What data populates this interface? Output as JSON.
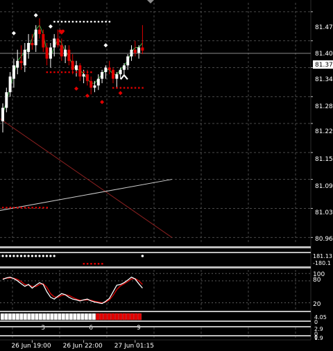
{
  "chart_data": {
    "type": "candlestick",
    "symbol_overlay": "trading-terminal",
    "colors": {
      "background": "#000000",
      "bull": "#ffffff",
      "bear": "#e00000",
      "grid": "#4a4a4a",
      "ma": "#3cb043",
      "stoch_main": "#ffffff",
      "stoch_signal": "#e00000",
      "trend_red": "#8b2020",
      "trend_white": "#cfcfcf",
      "price_line": "#8c8c8c",
      "separator": "#bfbfbf"
    },
    "main": {
      "ylim": [
        80.95,
        81.49
      ],
      "y_ticks": [
        "81.470",
        "81.405",
        "81.345",
        "81.280",
        "81.220",
        "81.155",
        "81.095",
        "81.030",
        "80.965"
      ],
      "y_tick_values": [
        81.47,
        81.405,
        81.345,
        81.28,
        81.22,
        81.155,
        81.095,
        81.03,
        80.965
      ],
      "current_price_label": "81.377",
      "current_price": 81.377,
      "candles": [
        [
          81.225,
          81.265,
          81.2,
          81.255
        ],
        [
          81.255,
          81.3,
          81.245,
          81.29
        ],
        [
          81.29,
          81.335,
          81.28,
          81.325
        ],
        [
          81.32,
          81.365,
          81.3,
          81.35
        ],
        [
          81.345,
          81.385,
          81.33,
          81.36
        ],
        [
          81.36,
          81.395,
          81.34,
          81.355
        ],
        [
          81.35,
          81.4,
          81.335,
          81.385
        ],
        [
          81.38,
          81.42,
          81.365,
          81.4
        ],
        [
          81.4,
          81.42,
          81.385,
          81.395
        ],
        [
          81.395,
          81.44,
          81.38,
          81.43
        ],
        [
          81.43,
          81.455,
          81.41,
          81.42
        ],
        [
          81.42,
          81.43,
          81.38,
          81.39
        ],
        [
          81.39,
          81.4,
          81.35,
          81.365
        ],
        [
          81.365,
          81.4,
          81.345,
          81.39
        ],
        [
          81.39,
          81.42,
          81.37,
          81.41
        ],
        [
          81.41,
          81.43,
          81.39,
          81.395
        ],
        [
          81.395,
          81.41,
          81.36,
          81.37
        ],
        [
          81.37,
          81.395,
          81.355,
          81.385
        ],
        [
          81.385,
          81.395,
          81.35,
          81.36
        ],
        [
          81.36,
          81.375,
          81.33,
          81.34
        ],
        [
          81.34,
          81.36,
          81.325,
          81.35
        ],
        [
          81.35,
          81.355,
          81.315,
          81.325
        ],
        [
          81.325,
          81.34,
          81.31,
          81.33
        ],
        [
          81.33,
          81.34,
          81.305,
          81.315
        ],
        [
          81.315,
          81.325,
          81.285,
          81.3
        ],
        [
          81.3,
          81.315,
          81.29,
          81.305
        ],
        [
          81.305,
          81.33,
          81.295,
          81.32
        ],
        [
          81.32,
          81.34,
          81.31,
          81.335
        ],
        [
          81.335,
          81.35,
          81.32,
          81.345
        ],
        [
          81.345,
          81.36,
          81.33,
          81.34
        ],
        [
          81.34,
          81.345,
          81.31,
          81.32
        ],
        [
          81.32,
          81.335,
          81.3,
          81.33
        ],
        [
          81.33,
          81.345,
          81.32,
          81.34
        ],
        [
          81.34,
          81.355,
          81.33,
          81.35
        ],
        [
          81.35,
          81.375,
          81.34,
          81.37
        ],
        [
          81.37,
          81.395,
          81.36,
          81.385
        ],
        [
          81.385,
          81.405,
          81.37,
          81.378
        ],
        [
          81.378,
          81.395,
          81.365,
          81.39
        ],
        [
          81.39,
          81.44,
          81.375,
          81.383
        ]
      ],
      "ma_values": [
        81.24,
        81.27,
        81.3,
        81.33,
        81.36,
        81.37,
        81.38,
        81.39,
        81.41,
        81.43,
        81.44,
        81.42,
        81.38,
        81.37,
        81.39,
        81.41,
        81.4,
        81.38,
        81.37,
        81.35,
        81.34,
        81.34,
        81.33,
        81.32,
        81.31,
        81.31,
        81.32,
        81.33,
        81.34,
        81.34,
        81.33,
        81.33,
        81.34,
        81.35,
        81.36,
        81.38,
        81.39,
        81.39,
        81.4
      ],
      "resistance_dots": {
        "start": 14,
        "end": 29,
        "value": 81.448
      },
      "support_dots_1": {
        "start": 12,
        "end": 24,
        "value": 81.335
      },
      "support_dots_2": {
        "start": 30,
        "end": 38,
        "value": 81.3
      },
      "dots_left": {
        "start": -2,
        "end": 12,
        "value": 81.032
      },
      "diamonds_white": [
        [
          9,
          81.462
        ],
        [
          3,
          81.422
        ],
        [
          13,
          81.437
        ],
        [
          28,
          81.395
        ]
      ],
      "diamonds_red": [
        [
          20,
          81.298
        ],
        [
          23,
          81.282
        ],
        [
          27,
          81.268
        ],
        [
          32,
          81.288
        ]
      ],
      "heart_red": [
        16,
        81.425
      ],
      "arrow_up_white": [
        33,
        81.325
      ],
      "trend_red": [
        [
          -1,
          81.232
        ],
        [
          46,
          80.965
        ]
      ],
      "trend_white": [
        [
          -1,
          81.025
        ],
        [
          46,
          81.095
        ]
      ]
    },
    "sub_window_1": {
      "white_dots": {
        "start": -2,
        "end": 14
      },
      "white_dot_extra": 38
    },
    "sub_window_2": {
      "label_top": "181.13",
      "label_bottom": "-180.1",
      "red_dots": {
        "start": 22,
        "end": 27
      }
    },
    "stochastic": {
      "ylim": [
        0,
        110
      ],
      "levels": [
        100,
        80,
        20
      ],
      "level_labels": [
        "100",
        "80",
        "20"
      ],
      "main": [
        84,
        88,
        90,
        86,
        80,
        72,
        65,
        70,
        60,
        68,
        75,
        70,
        50,
        35,
        30,
        38,
        45,
        42,
        35,
        30,
        28,
        25,
        28,
        30,
        25,
        22,
        20,
        18,
        24,
        32,
        50,
        68,
        70,
        75,
        82,
        90,
        85,
        72,
        60
      ],
      "signal": [
        86,
        87,
        88,
        87,
        84,
        78,
        70,
        68,
        65,
        64,
        70,
        72,
        62,
        45,
        36,
        35,
        40,
        42,
        40,
        35,
        30,
        27,
        27,
        28,
        27,
        24,
        22,
        20,
        22,
        28,
        40,
        56,
        66,
        72,
        78,
        85,
        86,
        80,
        70
      ]
    },
    "histogram_window": {
      "labels": [
        "4.05",
        "0"
      ],
      "cells_white": 25,
      "cells_red": 12
    },
    "sub_window_5": {
      "labels": [
        "2.9",
        "0"
      ]
    },
    "sub_window_6": {
      "labels": [
        "1.9",
        "0"
      ]
    },
    "count_labels": [
      {
        "text": "3",
        "index": 11
      },
      {
        "text": "6",
        "index": 24
      },
      {
        "text": "9",
        "index": 37
      }
    ],
    "x_ticks": [
      {
        "label": "26 Jun 19:00",
        "index": 8
      },
      {
        "label": "26 Jun 22:00",
        "index": 22
      },
      {
        "label": "27 Jun 01:15",
        "index": 36
      }
    ]
  }
}
